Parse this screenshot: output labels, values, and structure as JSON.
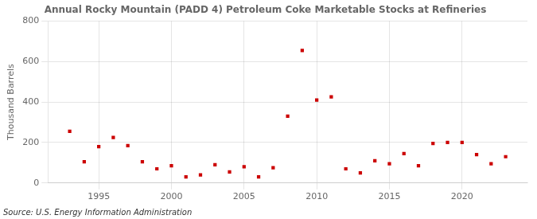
{
  "chart_data": {
    "type": "scatter",
    "title": "Annual Rocky Mountain (PADD 4) Petroleum Coke Marketable Stocks at Refineries",
    "ylabel": "Thousand Barrels",
    "annotations": [
      "Source: U.S. Energy Information Administration"
    ],
    "x": [
      1993,
      1994,
      1995,
      1996,
      1997,
      1998,
      1999,
      2000,
      2001,
      2002,
      2003,
      2004,
      2005,
      2006,
      2007,
      2008,
      2009,
      2010,
      2011,
      2012,
      2013,
      2014,
      2015,
      2016,
      2017,
      2018,
      2019,
      2020,
      2021,
      2022,
      2023
    ],
    "values": [
      255,
      105,
      180,
      225,
      185,
      105,
      70,
      85,
      30,
      40,
      90,
      55,
      80,
      30,
      75,
      330,
      655,
      410,
      425,
      70,
      50,
      110,
      95,
      145,
      85,
      195,
      200,
      200,
      140,
      95,
      130
    ],
    "color": "#cc0000",
    "marker": "square",
    "xlim": [
      1991.5,
      2024.5
    ],
    "xticks": [
      1995,
      2000,
      2005,
      2010,
      2015,
      2020
    ],
    "ylim": [
      0,
      800
    ],
    "yticks": [
      0,
      200,
      400,
      600,
      800
    ],
    "grid": true
  }
}
